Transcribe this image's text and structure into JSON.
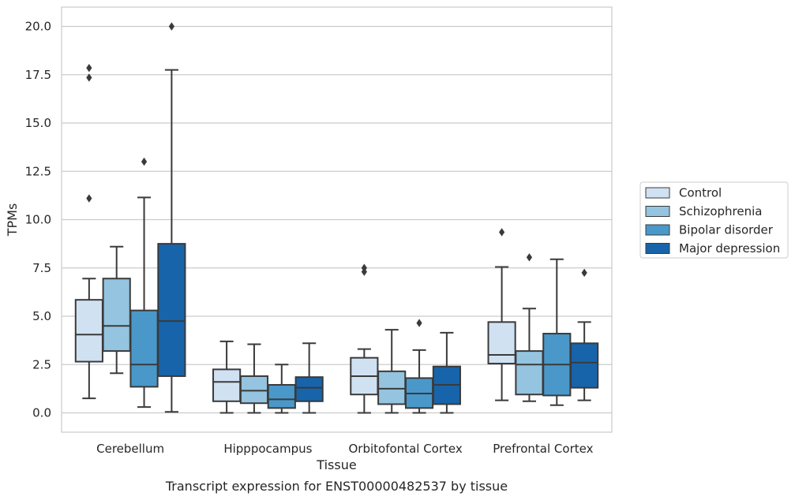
{
  "chart_data": {
    "type": "box",
    "caption": "Transcript expression for ENST00000482537 by tissue",
    "xlabel": "Tissue",
    "ylabel": "TPMs",
    "ylim": [
      -1,
      21
    ],
    "yticks": [
      "0.0",
      "2.5",
      "5.0",
      "7.5",
      "10.0",
      "12.5",
      "15.0",
      "17.5",
      "20.0"
    ],
    "ytick_values": [
      0,
      2.5,
      5,
      7.5,
      10,
      12.5,
      15,
      17.5,
      20
    ],
    "grid": "horizontal",
    "legend_position": "right",
    "categories": [
      "Cerebellum",
      "Hipppocampus",
      "Orbitofontal Cortex",
      "Prefrontal Cortex"
    ],
    "series": [
      {
        "name": "Control",
        "color": "#d0e1f2",
        "boxes": [
          {
            "whisker_low": 0.75,
            "q1": 2.65,
            "median": 4.05,
            "q3": 5.85,
            "whisker_high": 6.95,
            "outliers": [
              11.1,
              17.35,
              17.85
            ]
          },
          {
            "whisker_low": 0.0,
            "q1": 0.6,
            "median": 1.6,
            "q3": 2.25,
            "whisker_high": 3.7,
            "outliers": []
          },
          {
            "whisker_low": 0.0,
            "q1": 0.95,
            "median": 1.9,
            "q3": 2.85,
            "whisker_high": 3.3,
            "outliers": [
              7.3,
              7.5
            ]
          },
          {
            "whisker_low": 0.65,
            "q1": 2.55,
            "median": 3.0,
            "q3": 4.7,
            "whisker_high": 7.55,
            "outliers": [
              9.35
            ]
          }
        ]
      },
      {
        "name": "Schizophrenia",
        "color": "#94c4df",
        "boxes": [
          {
            "whisker_low": 2.05,
            "q1": 3.2,
            "median": 4.5,
            "q3": 6.95,
            "whisker_high": 8.6,
            "outliers": []
          },
          {
            "whisker_low": 0.0,
            "q1": 0.5,
            "median": 1.15,
            "q3": 1.9,
            "whisker_high": 3.55,
            "outliers": []
          },
          {
            "whisker_low": 0.0,
            "q1": 0.45,
            "median": 1.25,
            "q3": 2.15,
            "whisker_high": 4.3,
            "outliers": []
          },
          {
            "whisker_low": 0.6,
            "q1": 0.95,
            "median": 2.5,
            "q3": 3.2,
            "whisker_high": 5.4,
            "outliers": [
              8.05
            ]
          }
        ]
      },
      {
        "name": "Bipolar disorder",
        "color": "#4a98c9",
        "boxes": [
          {
            "whisker_low": 0.3,
            "q1": 1.35,
            "median": 2.5,
            "q3": 5.3,
            "whisker_high": 11.15,
            "outliers": [
              13.0
            ]
          },
          {
            "whisker_low": 0.0,
            "q1": 0.25,
            "median": 0.7,
            "q3": 1.45,
            "whisker_high": 2.5,
            "outliers": []
          },
          {
            "whisker_low": 0.0,
            "q1": 0.25,
            "median": 1.0,
            "q3": 1.8,
            "whisker_high": 3.25,
            "outliers": [
              4.65
            ]
          },
          {
            "whisker_low": 0.4,
            "q1": 0.9,
            "median": 2.5,
            "q3": 4.1,
            "whisker_high": 7.95,
            "outliers": []
          }
        ]
      },
      {
        "name": "Major depression",
        "color": "#1764ab",
        "boxes": [
          {
            "whisker_low": 0.05,
            "q1": 1.9,
            "median": 4.75,
            "q3": 8.75,
            "whisker_high": 17.75,
            "outliers": [
              20.0
            ]
          },
          {
            "whisker_low": 0.0,
            "q1": 0.6,
            "median": 1.3,
            "q3": 1.85,
            "whisker_high": 3.6,
            "outliers": []
          },
          {
            "whisker_low": 0.0,
            "q1": 0.45,
            "median": 1.45,
            "q3": 2.4,
            "whisker_high": 4.15,
            "outliers": []
          },
          {
            "whisker_low": 0.65,
            "q1": 1.3,
            "median": 2.6,
            "q3": 3.6,
            "whisker_high": 4.7,
            "outliers": [
              7.25
            ]
          }
        ]
      }
    ]
  }
}
